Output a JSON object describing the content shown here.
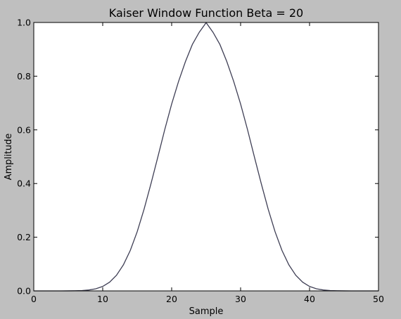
{
  "figure_background": "#bfbfbf",
  "plot_background": "#ffffff",
  "line_color": "#3f3f55",
  "chart_data": {
    "type": "line",
    "title": "Kaiser Window Function Beta = 20",
    "xlabel": "Sample",
    "ylabel": "Amplitude",
    "xlim": [
      0,
      50
    ],
    "ylim": [
      0.0,
      1.0
    ],
    "xticks": [
      "0",
      "10",
      "20",
      "30",
      "40",
      "50"
    ],
    "yticks": [
      "0.0",
      "0.2",
      "0.4",
      "0.6",
      "0.8",
      "1.0"
    ],
    "grid": false,
    "series": [
      {
        "x": [
          0,
          1,
          2,
          3,
          4,
          5,
          6,
          7,
          8,
          9,
          10,
          11,
          12,
          13,
          14,
          15,
          16,
          17,
          18,
          19,
          20,
          21,
          22,
          23,
          24,
          25,
          26,
          27,
          28,
          29,
          30,
          31,
          32,
          33,
          34,
          35,
          36,
          37,
          38,
          39,
          40,
          41,
          42,
          43,
          44,
          45,
          46,
          47,
          48,
          49,
          50
        ],
        "values": [
          0.0,
          0.0,
          0.0,
          0.0,
          0.0,
          0.0001,
          0.0005,
          0.0013,
          0.0034,
          0.0079,
          0.0167,
          0.0325,
          0.0583,
          0.0971,
          0.1508,
          0.2204,
          0.3045,
          0.3993,
          0.4992,
          0.6011,
          0.6962,
          0.7802,
          0.8543,
          0.918,
          0.9634,
          0.9995,
          0.9634,
          0.918,
          0.8543,
          0.7802,
          0.6962,
          0.6011,
          0.4992,
          0.3993,
          0.3045,
          0.2204,
          0.1508,
          0.0971,
          0.0583,
          0.0325,
          0.0167,
          0.0079,
          0.0034,
          0.0013,
          0.0005,
          0.0001,
          0.0,
          0.0,
          0.0,
          0.0,
          0.0
        ]
      }
    ]
  }
}
